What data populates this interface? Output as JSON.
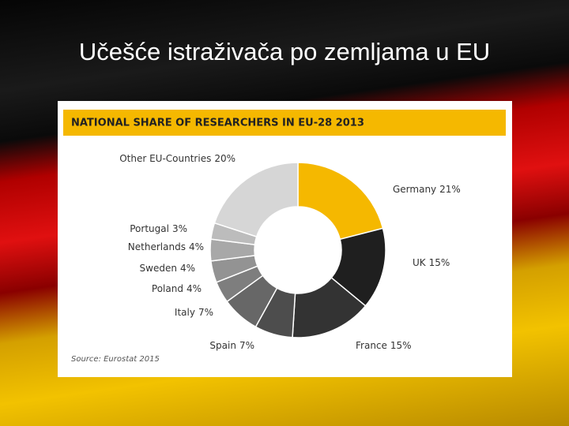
{
  "slide_title": "Učešće istraživača po zemljama u EU",
  "chart_data": {
    "type": "donut",
    "title": "NATIONAL SHARE OF RESEARCHERS IN EU-28 2013",
    "source": "Source: Eurostat 2015",
    "categories": [
      "Germany",
      "UK",
      "France",
      "Spain",
      "Italy",
      "Poland",
      "Sweden",
      "Netherlands",
      "Portugal",
      "Other EU-Countries"
    ],
    "values": [
      21,
      15,
      15,
      7,
      7,
      4,
      4,
      4,
      3,
      20
    ],
    "value_labels": [
      "21%",
      "15%",
      "15%",
      "7%",
      "7%",
      "4%",
      "4%",
      "4%",
      "3%",
      "20%"
    ],
    "colors": [
      "#f5b800",
      "#1f1f1f",
      "#333333",
      "#4d4d4d",
      "#676767",
      "#7e7e7e",
      "#939393",
      "#a8a8a8",
      "#bcbcbc",
      "#d6d6d6"
    ]
  }
}
